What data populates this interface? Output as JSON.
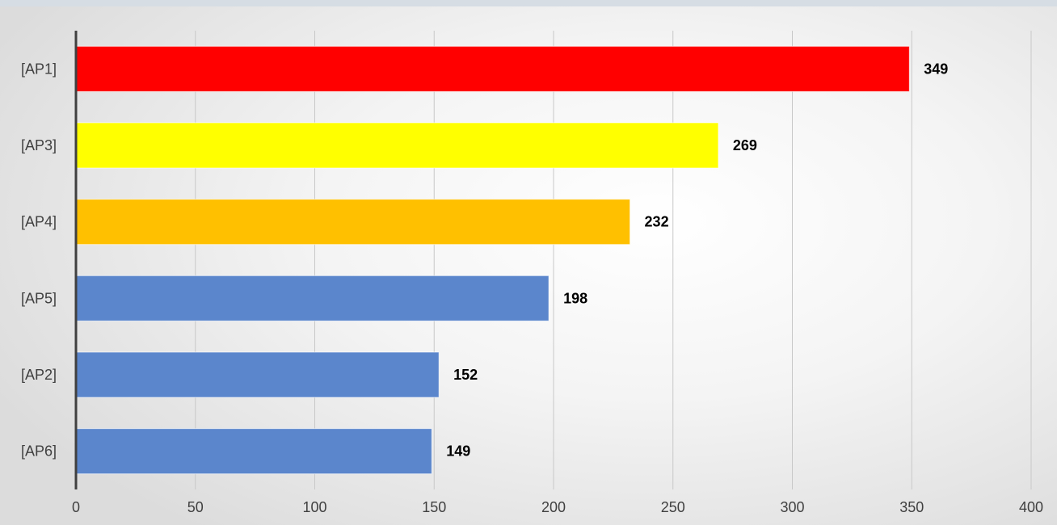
{
  "chart_data": {
    "type": "bar",
    "orientation": "horizontal",
    "categories": [
      "[AP1]",
      "[AP3]",
      "[AP4]",
      "[AP5]",
      "[AP2]",
      "[AP6]"
    ],
    "values": [
      349,
      269,
      232,
      198,
      152,
      149
    ],
    "bar_colors": [
      "#ff0000",
      "#ffff00",
      "#ffc000",
      "#5b86cc",
      "#5b86cc",
      "#5b86cc"
    ],
    "xlim": [
      0,
      400
    ],
    "x_ticks": [
      "0",
      "50",
      "100",
      "150",
      "200",
      "250",
      "300",
      "350",
      "400"
    ],
    "title": "",
    "xlabel": "",
    "ylabel": "",
    "grid": "vertical",
    "data_labels": [
      "349",
      "269",
      "232",
      "198",
      "152",
      "149"
    ]
  }
}
